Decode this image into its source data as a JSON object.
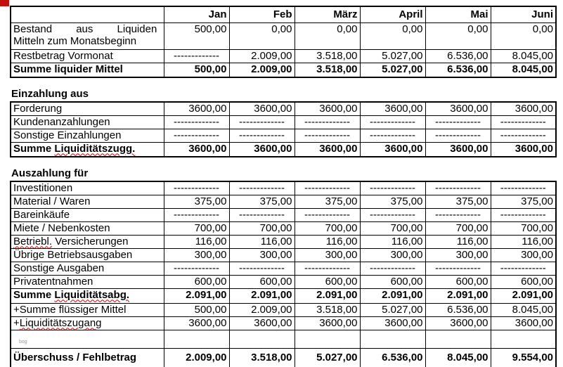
{
  "accent_mark_color": "#c40f0f",
  "table": {
    "corner_label": "",
    "columns": [
      "Jan",
      "Feb",
      "März",
      "April",
      "Mai",
      "Juni"
    ],
    "sections": [
      {
        "name": "liquide-mittel",
        "heading": null,
        "show_columns": true,
        "rows": [
          {
            "h": "tall",
            "label": [
              {
                "text": "Bestand aus Liquiden",
                "spread": true
              },
              {
                "br": true
              },
              {
                "text": "Mitteln zum Monatsbeginn"
              }
            ],
            "values": [
              "500,00",
              "0,00",
              "0,00",
              "0,00",
              "0,00",
              "0,00"
            ]
          },
          {
            "label": [
              {
                "text": "Restbetrag Vormonat"
              }
            ],
            "values": [
              "-------------",
              "2.009,00",
              "3.518,00",
              "5.027,00",
              "6.536,00",
              "8.045,00"
            ]
          },
          {
            "h": "sum",
            "bold": true,
            "label": [
              {
                "text": "Summe liquider Mittel"
              }
            ],
            "values": [
              "500,00",
              "2.009,00",
              "3.518,00",
              "5.027,00",
              "6.536,00",
              "8.045,00"
            ]
          }
        ]
      },
      {
        "name": "einzahlung",
        "heading": "Einzahlung aus",
        "show_columns": false,
        "rows": [
          {
            "label": [
              {
                "text": "Forderung"
              }
            ],
            "values": [
              "3600,00",
              "3600,00",
              "3600,00",
              "3600,00",
              "3600,00",
              "3600,00"
            ]
          },
          {
            "label": [
              {
                "text": "Kundenanzahlungen"
              }
            ],
            "values": [
              "-------------",
              "-------------",
              "-------------",
              "-------------",
              "-------------",
              "-------------"
            ]
          },
          {
            "label": [
              {
                "text": "Sonstige Einzahlungen"
              }
            ],
            "values": [
              "-------------",
              "-------------",
              "-------------",
              "-------------",
              "-------------",
              "-------------"
            ]
          },
          {
            "h": "sum",
            "bold": true,
            "label": [
              {
                "text": "Summe "
              },
              {
                "text": "Liquiditätszugg.",
                "mark": true
              }
            ],
            "values": [
              "3600,00",
              "3600,00",
              "3600,00",
              "3600,00",
              "3600,00",
              "3600,00"
            ]
          }
        ]
      },
      {
        "name": "auszahlung",
        "heading": "Auszahlung für",
        "show_columns": false,
        "rows": [
          {
            "label": [
              {
                "text": "Investitionen"
              }
            ],
            "values": [
              "-------------",
              "-------------",
              "-------------",
              "-------------",
              "-------------",
              "-------------"
            ]
          },
          {
            "label": [
              {
                "text": "Material / Waren"
              }
            ],
            "values": [
              "375,00",
              "375,00",
              "375,00",
              "375,00",
              "375,00",
              "375,00"
            ]
          },
          {
            "label": [
              {
                "text": "Bareinkäufe"
              }
            ],
            "values": [
              "-------------",
              "-------------",
              "-------------",
              "-------------",
              "-------------",
              "-------------"
            ]
          },
          {
            "label": [
              {
                "text": "Miete / Nebenkosten"
              }
            ],
            "values": [
              "700,00",
              "700,00",
              "700,00",
              "700,00",
              "700,00",
              "700,00"
            ]
          },
          {
            "label": [
              {
                "text": "Betriebl.",
                "mark": true
              },
              {
                "text": " Versicherungen"
              }
            ],
            "values": [
              "116,00",
              "116,00",
              "116,00",
              "116,00",
              "116,00",
              "116,00"
            ]
          },
          {
            "label": [
              {
                "text": "Übrige Betriebsausgaben"
              }
            ],
            "values": [
              "300,00",
              "300,00",
              "300,00",
              "300,00",
              "300,00",
              "300,00"
            ]
          },
          {
            "label": [
              {
                "text": "Sonstige Ausgaben"
              }
            ],
            "values": [
              "-------------",
              "-------------",
              "-------------",
              "-------------",
              "-------------",
              "-------------"
            ]
          },
          {
            "label": [
              {
                "text": "Privatentnahmen"
              }
            ],
            "values": [
              "600,00",
              "600,00",
              "600,00",
              "600,00",
              "600,00",
              "600,00"
            ]
          },
          {
            "h": "sum",
            "bold": true,
            "label": [
              {
                "text": "Summe "
              },
              {
                "text": "Liquiditätsabg.",
                "mark": true
              }
            ],
            "values": [
              "2.091,00",
              "2.091,00",
              "2.091,00",
              "2.091,00",
              "2.091,00",
              "2.091,00"
            ]
          },
          {
            "label": [
              {
                "text": "+Summe flüssiger Mittel"
              }
            ],
            "values": [
              "500,00",
              "2.009,00",
              "3.518,00",
              "5.027,00",
              "6.536,00",
              "8.045,00"
            ]
          },
          {
            "label": [
              {
                "text": "+"
              },
              {
                "text": "Liquiditätszugang",
                "mark": true
              }
            ],
            "values": [
              "3600,00",
              "3600,00",
              "3600,00",
              "3600,00",
              "3600,00",
              "3600,00"
            ]
          },
          {
            "h": "empty",
            "watermark": "bog",
            "label": [],
            "values": [
              "",
              "",
              "",
              "",
              "",
              ""
            ]
          },
          {
            "h": "final",
            "bold": true,
            "label": [
              {
                "text": "Überschuss / Fehlbetrag"
              }
            ],
            "values": [
              "2.009,00",
              "3.518,00",
              "5.027,00",
              "6.536,00",
              "8.045,00",
              "9.554,00"
            ]
          }
        ]
      }
    ]
  }
}
